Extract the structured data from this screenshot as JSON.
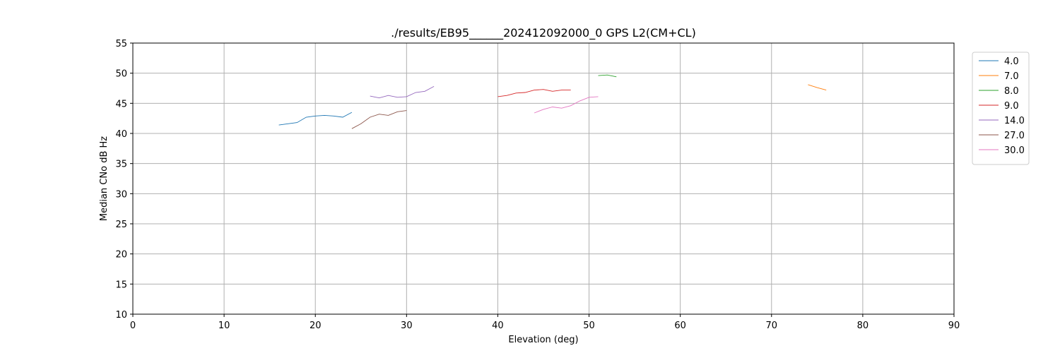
{
  "chart_data": {
    "type": "line",
    "title": "./results/EB95______202412092000_0 GPS L2(CM+CL)",
    "xlabel": "Elevation (deg)",
    "ylabel": "Median CNo dB Hz",
    "xlim": [
      0,
      90
    ],
    "ylim": [
      10,
      55
    ],
    "xticks": [
      0,
      10,
      20,
      30,
      40,
      50,
      60,
      70,
      80,
      90
    ],
    "yticks": [
      10,
      15,
      20,
      25,
      30,
      35,
      40,
      45,
      50,
      55
    ],
    "grid": true,
    "legend_position": "right-top",
    "series": [
      {
        "name": "4.0",
        "color": "#1f77b4",
        "x": [
          16,
          17,
          18,
          19,
          20,
          21,
          22,
          23,
          24
        ],
        "y": [
          41.4,
          41.6,
          41.8,
          42.7,
          42.9,
          43.0,
          42.9,
          42.7,
          43.5
        ]
      },
      {
        "name": "7.0",
        "color": "#ff7f0e",
        "x": [
          74,
          75,
          76
        ],
        "y": [
          48.1,
          47.6,
          47.2
        ]
      },
      {
        "name": "8.0",
        "color": "#2ca02c",
        "x": [
          51,
          52,
          53
        ],
        "y": [
          49.6,
          49.7,
          49.4
        ]
      },
      {
        "name": "9.0",
        "color": "#d62728",
        "x": [
          40,
          41,
          42,
          43,
          44,
          45,
          46,
          47,
          48
        ],
        "y": [
          46.1,
          46.3,
          46.7,
          46.8,
          47.2,
          47.3,
          47.0,
          47.2,
          47.2
        ]
      },
      {
        "name": "14.0",
        "color": "#9467bd",
        "x": [
          26,
          27,
          28,
          29,
          30,
          31,
          32,
          33
        ],
        "y": [
          46.2,
          45.9,
          46.3,
          46.0,
          46.1,
          46.8,
          47.0,
          47.8
        ]
      },
      {
        "name": "27.0",
        "color": "#8c564b",
        "x": [
          24,
          25,
          26,
          27,
          28,
          29,
          30
        ],
        "y": [
          40.8,
          41.6,
          42.7,
          43.2,
          43.0,
          43.6,
          43.8
        ]
      },
      {
        "name": "30.0",
        "color": "#e377c2",
        "x": [
          44,
          45,
          46,
          47,
          48,
          49,
          50,
          51
        ],
        "y": [
          43.4,
          44.0,
          44.4,
          44.2,
          44.6,
          45.4,
          46.0,
          46.1
        ]
      }
    ]
  }
}
